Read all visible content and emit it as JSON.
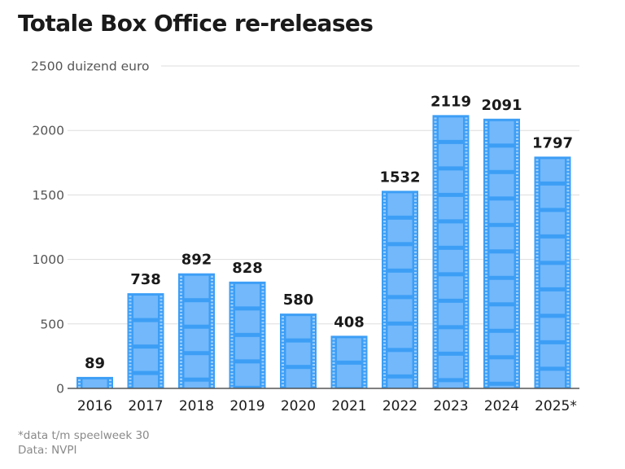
{
  "chart_data": {
    "type": "bar",
    "title": "Totale Box Office re-releases",
    "xlabel": "",
    "ylabel": "duizend euro",
    "unit_label": "2500 duizend euro",
    "categories": [
      "2016",
      "2017",
      "2018",
      "2019",
      "2020",
      "2021",
      "2022",
      "2023",
      "2024",
      "2025*"
    ],
    "values": [
      89,
      738,
      892,
      828,
      580,
      408,
      1532,
      2119,
      2091,
      1797
    ],
    "data_labels": [
      "89",
      "738",
      "892",
      "828",
      "580",
      "408",
      "1532",
      "2119",
      "2091",
      "1797"
    ],
    "ylim": [
      0,
      2500
    ],
    "yticks": [
      0,
      500,
      1000,
      1500,
      2000,
      2500
    ],
    "ytick_labels": [
      "0",
      "500",
      "1000",
      "1500",
      "2000",
      "2500 duizend euro"
    ],
    "grid": true,
    "legend": "none",
    "bar_style": "film-strip",
    "colors": {
      "bar_frame": "#3d9ef5",
      "bar_fill": "#72b8fb",
      "sprocket": "#9fd0ff",
      "grid": "#dddddd",
      "baseline": "#555555",
      "label": "#1a1a1a",
      "tick": "#555555"
    },
    "footnotes": [
      "*data t/m speelweek 30",
      "Data: NVPI"
    ]
  }
}
